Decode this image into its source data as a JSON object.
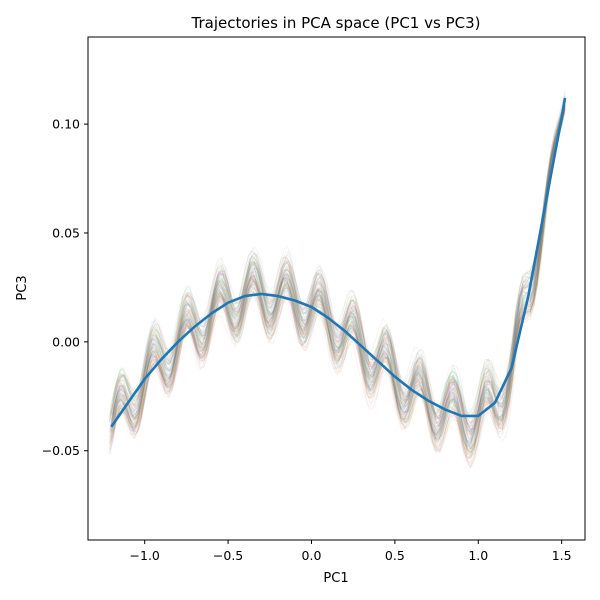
{
  "chart_data": {
    "type": "line",
    "title": "Trajectories in PCA space (PC1 vs PC3)",
    "xlabel": "PC1",
    "ylabel": "PC3",
    "xlim": [
      -1.34,
      1.64
    ],
    "ylim": [
      -0.091,
      0.14
    ],
    "x_ticks": [
      -1.0,
      -0.5,
      0.0,
      0.5,
      1.0,
      1.5
    ],
    "x_tick_labels": [
      "−1.0",
      "−0.5",
      "0.0",
      "0.5",
      "1.0",
      "1.5"
    ],
    "y_ticks": [
      -0.05,
      0.0,
      0.05,
      0.1
    ],
    "y_tick_labels": [
      "−0.05",
      "0.00",
      "0.05",
      "0.10"
    ],
    "grid": false,
    "series": [
      {
        "role": "mean",
        "color": "#1f77b4",
        "x": [
          -1.2,
          -1.1,
          -1.0,
          -0.9,
          -0.8,
          -0.7,
          -0.6,
          -0.5,
          -0.4,
          -0.3,
          -0.2,
          -0.1,
          0.0,
          0.1,
          0.2,
          0.3,
          0.4,
          0.5,
          0.6,
          0.7,
          0.8,
          0.9,
          1.0,
          1.1,
          1.2,
          1.3,
          1.4,
          1.5,
          1.52
        ],
        "y": [
          -0.039,
          -0.028,
          -0.017,
          -0.008,
          0.0,
          0.007,
          0.013,
          0.018,
          0.021,
          0.022,
          0.021,
          0.019,
          0.016,
          0.011,
          0.005,
          -0.002,
          -0.009,
          -0.016,
          -0.022,
          -0.027,
          -0.031,
          -0.034,
          -0.034,
          -0.028,
          -0.012,
          0.021,
          0.062,
          0.103,
          0.112
        ]
      }
    ],
    "trajectory_band": {
      "count": 100,
      "opacity": 0.08,
      "colors": [
        "#1f77b4",
        "#ff7f0e",
        "#2ca02c",
        "#d62728",
        "#9467bd",
        "#8c564b",
        "#e377c2",
        "#7f7f7f",
        "#bcbd22",
        "#17becf"
      ],
      "oscillation_period_pc1": 0.2,
      "oscillation_amplitude_pc3": 0.011,
      "spread_pc3": 0.009
    }
  }
}
